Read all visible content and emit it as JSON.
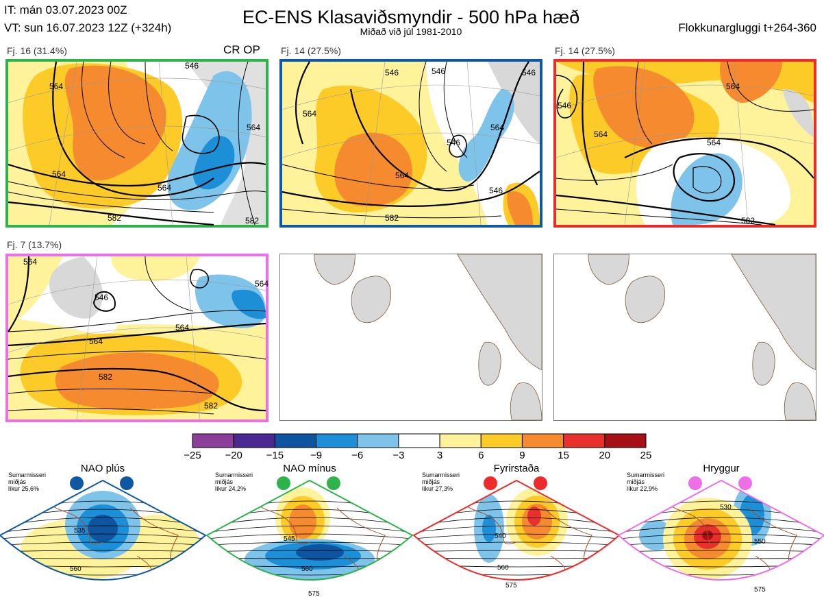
{
  "header": {
    "it_line": "IT: mán 03.07.2023 00Z",
    "vt_line": "VT: sun 16.07.2023 12Z  (+324h)",
    "title": "EC-ENS Klasaviðsmyndir - 500 hPa hæð",
    "subtitle": "Miðað við júl 1981-2010",
    "window": "Flokkunargluggi t+264-360"
  },
  "colors": {
    "green": "#2db34a",
    "blue": "#0e57a3",
    "red": "#ee2a2a",
    "violet": "#ee6ee8",
    "land": "#d8d8d8",
    "coast": "#7a5a3c",
    "ocean": "#ffffff"
  },
  "panels": [
    {
      "label": "Fj. 16 (31.4%)",
      "extra": "CR OP",
      "border": "green",
      "contour_labels": [
        "564",
        "564",
        "582",
        "546",
        "564",
        "582",
        "564"
      ]
    },
    {
      "label": "Fj. 14 (27.5%)",
      "extra": "",
      "border": "blue",
      "contour_labels": [
        "564",
        "546",
        "546",
        "564",
        "582",
        "546",
        "564",
        "546",
        "546"
      ]
    },
    {
      "label": "Fj. 14 (27.5%)",
      "extra": "",
      "border": "red",
      "contour_labels": [
        "564",
        "546",
        "564",
        "564",
        "582"
      ]
    },
    {
      "label": "Fj. 7 (13.7%)",
      "extra": "",
      "border": "violet",
      "contour_labels": [
        "564",
        "546",
        "564",
        "564",
        "582",
        "582",
        "564"
      ]
    }
  ],
  "chart_data": {
    "type": "heatmap",
    "title": "EC-ENS Klasaviðsmyndir - 500 hPa hæð",
    "colorbar": {
      "ticks": [
        "−25",
        "−20",
        "−15",
        "−9",
        "−6",
        "−3",
        "3",
        "6",
        "9",
        "15",
        "20",
        "25"
      ],
      "colors": [
        "#8b3e9a",
        "#4a2a92",
        "#0f54a0",
        "#1c8fd6",
        "#7ec4ea",
        "#ffffff",
        "#fef29a",
        "#fccb28",
        "#f68a2e",
        "#e8302d",
        "#a50f15"
      ]
    },
    "clusters": [
      {
        "name": "Fj. 16",
        "members": 16,
        "percent": 31.4
      },
      {
        "name": "Fj. 14",
        "members": 14,
        "percent": 27.5
      },
      {
        "name": "Fj. 14",
        "members": 14,
        "percent": 27.5
      },
      {
        "name": "Fj. 7",
        "members": 7,
        "percent": 13.7
      }
    ],
    "regimes": [
      {
        "name": "NAO plús",
        "season": "Sumarmisseri",
        "scope": "miðjás",
        "probability": "líkur 25,6%",
        "color": "blue",
        "contours": [
          "535",
          "560"
        ]
      },
      {
        "name": "NAO mínus",
        "season": "Sumarmisseri",
        "scope": "miðjás",
        "probability": "líkur 24,2%",
        "color": "green",
        "contours": [
          "545",
          "560",
          "575"
        ]
      },
      {
        "name": "Fyrirstaða",
        "season": "Sumarmisseri",
        "scope": "miðjás",
        "probability": "líkur 27,3%",
        "color": "red",
        "contours": [
          "540",
          "560",
          "575"
        ]
      },
      {
        "name": "Hryggur",
        "season": "Sumarmisseri",
        "scope": "miðjás",
        "probability": "líkur 22,9%",
        "color": "violet",
        "contours": [
          "530",
          "550",
          "575"
        ]
      }
    ]
  }
}
